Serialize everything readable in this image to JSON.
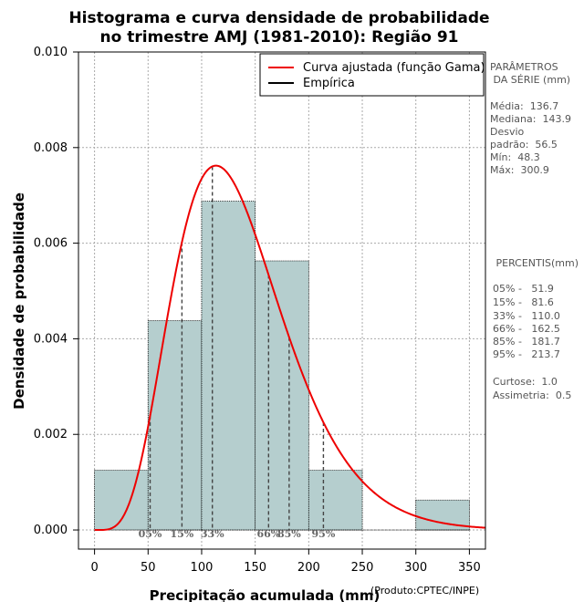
{
  "chart_data": {
    "type": "bar",
    "title_line1": "Histograma e curva densidade de probabilidade",
    "title_line2": "no trimestre AMJ (1981-2010): Região 91",
    "xlabel": "Precipitação acumulada (mm)",
    "ylabel": "Densidade de probabilidade",
    "credit": "(Produto:CPTEC/INPE)",
    "xlim": [
      -15,
      365
    ],
    "ylim": [
      -0.0004,
      0.01
    ],
    "x_ticks": [
      0,
      50,
      100,
      150,
      200,
      250,
      300,
      350
    ],
    "y_ticks": [
      0.0,
      0.002,
      0.004,
      0.006,
      0.008,
      0.01
    ],
    "y_tick_labels": [
      "0.000",
      "0.002",
      "0.004",
      "0.006",
      "0.008",
      "0.010"
    ],
    "grid": true,
    "bins": [
      {
        "x0": 0,
        "x1": 50,
        "density": 0.00125
      },
      {
        "x0": 50,
        "x1": 100,
        "density": 0.00438
      },
      {
        "x0": 100,
        "x1": 150,
        "density": 0.00688
      },
      {
        "x0": 150,
        "x1": 200,
        "density": 0.00563
      },
      {
        "x0": 200,
        "x1": 250,
        "density": 0.00125
      },
      {
        "x0": 300,
        "x1": 350,
        "density": 0.000625
      }
    ],
    "bar_color": "#b5cece",
    "curve_color": "#ee0000",
    "gamma_fit": {
      "mean": 136.7,
      "sd": 56.5
    },
    "legend": {
      "position": "top-right",
      "entries": [
        {
          "label": "Curva ajustada (função Gama)",
          "color": "#ee0000"
        },
        {
          "label": "Empírica",
          "color": "#000000"
        }
      ]
    },
    "percentiles": [
      {
        "label": "05%",
        "value": 51.9
      },
      {
        "label": "15%",
        "value": 81.6
      },
      {
        "label": "33%",
        "value": 110.0
      },
      {
        "label": "66%",
        "value": 162.5
      },
      {
        "label": "85%",
        "value": 181.7
      },
      {
        "label": "95%",
        "value": 213.7
      }
    ]
  },
  "side_panel": {
    "params_title_1": "PARÂMETROS",
    "params_title_2": " DA SÉRIE (mm)",
    "media": "Média:  136.7",
    "mediana": "Mediana:  143.9",
    "desvio_1": "Desvio",
    "desvio_2": "padrão:  56.5",
    "min": "Mín:  48.3",
    "max": "Máx:  300.9",
    "percentis_title": " PERCENTIS(mm)",
    "p05": "05% -   51.9",
    "p15": "15% -   81.6",
    "p33": "33% -   110.0",
    "p66": "66% -   162.5",
    "p85": "85% -   181.7",
    "p95": "95% -   213.7",
    "curtose": "Curtose:  1.0",
    "assimetria": "Assimetria:  0.5"
  }
}
